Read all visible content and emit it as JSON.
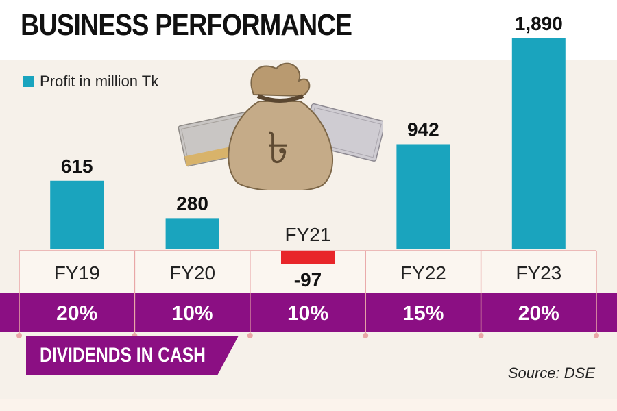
{
  "title": "BUSINESS PERFORMANCE",
  "source": "Source: DSE",
  "dividend_label": "DIVIDENDS IN CASH",
  "colors": {
    "bar": "#1aa4be",
    "negative_bar": "#e8262a",
    "dividend_band": "#8b0f83",
    "divider_line": "#e9a7a7"
  },
  "chart_data": {
    "type": "bar",
    "categories": [
      "FY19",
      "FY20",
      "FY21",
      "FY22",
      "FY23"
    ],
    "series": [
      {
        "name": "Profit in million Tk",
        "values": [
          615,
          280,
          -97,
          942,
          1890
        ]
      }
    ],
    "value_labels": [
      "615",
      "280",
      "-97",
      "942",
      "1,890"
    ],
    "dividends": [
      "20%",
      "10%",
      "10%",
      "15%",
      "20%"
    ],
    "legend": "top-left",
    "grid": false
  }
}
